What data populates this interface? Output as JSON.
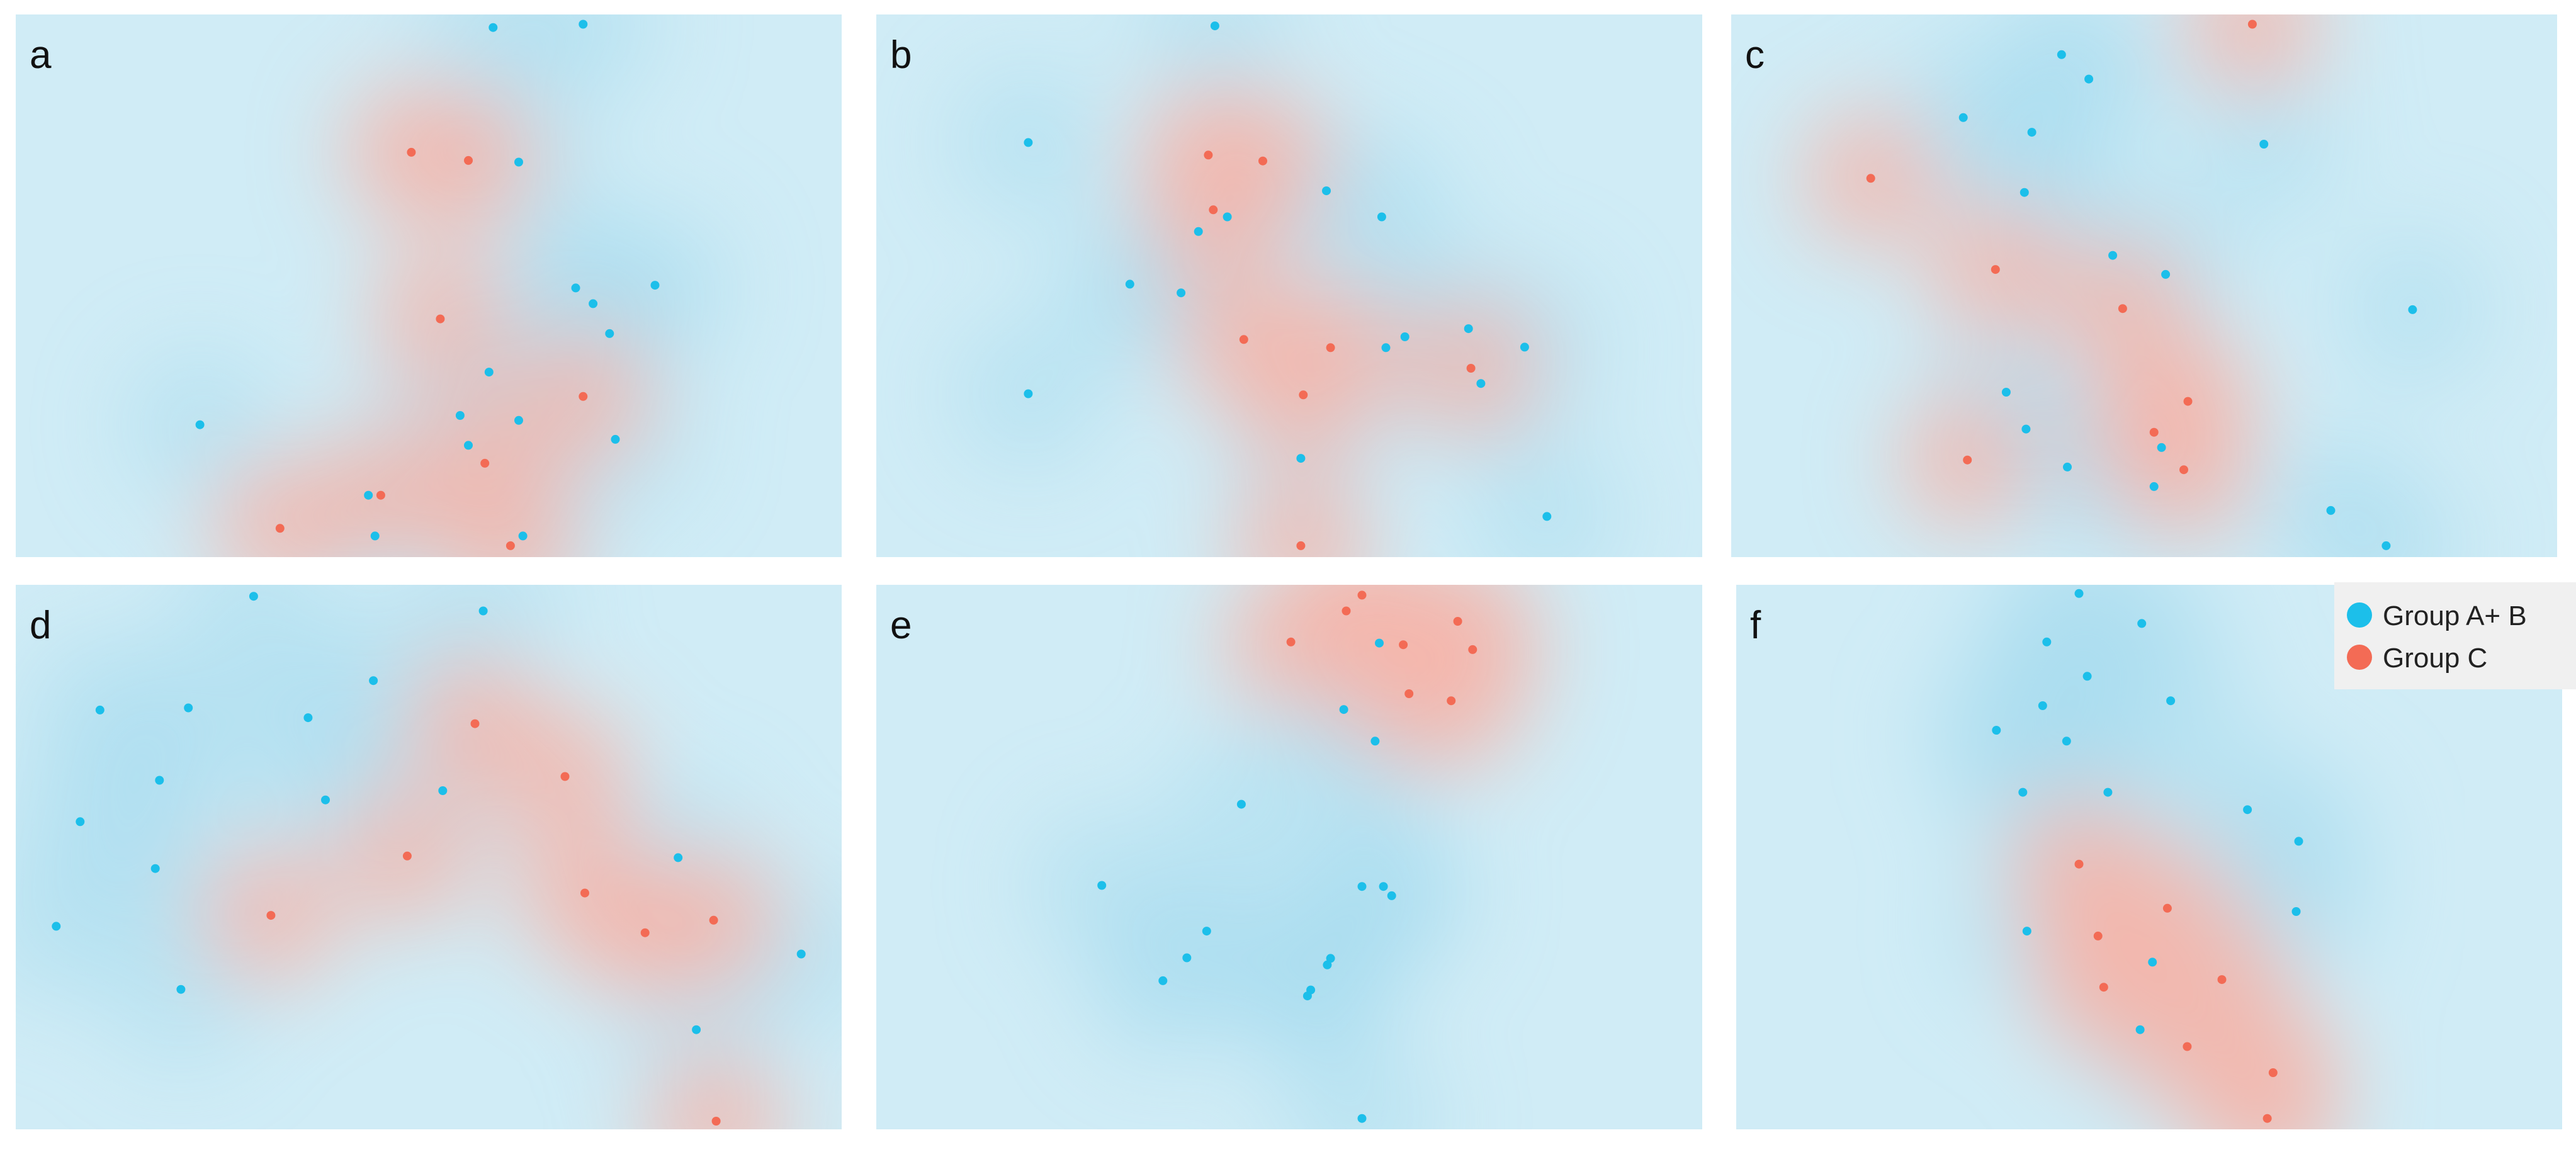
{
  "colors": {
    "group_ab": "#1cbfea",
    "group_c": "#f36b55",
    "field_blue": "#a9dcee",
    "field_red": "#f5b6ab",
    "legend_bg": "#f0f0f0"
  },
  "legend": {
    "placement": "top-right",
    "items": [
      {
        "label": "Group A+ B",
        "color": "#1cbfea"
      },
      {
        "label": "Group C",
        "color": "#f36b55"
      }
    ]
  },
  "chart_data": [
    {
      "type": "scatter",
      "panel": "a",
      "xlim": [
        0,
        100
      ],
      "ylim": [
        0,
        100
      ],
      "series": [
        {
          "name": "Group A+ B",
          "points": [
            [
              57.8,
              97.6
            ],
            [
              68.7,
              98.2
            ],
            [
              60.9,
              72.8
            ],
            [
              67.8,
              49.6
            ],
            [
              69.9,
              46.7
            ],
            [
              77.4,
              50.1
            ],
            [
              71.9,
              41.2
            ],
            [
              57.3,
              34.1
            ],
            [
              53.8,
              26.1
            ],
            [
              60.9,
              25.2
            ],
            [
              72.6,
              21.7
            ],
            [
              54.8,
              20.6
            ],
            [
              22.3,
              24.4
            ],
            [
              42.7,
              11.4
            ],
            [
              43.5,
              3.9
            ],
            [
              61.4,
              3.9
            ]
          ]
        },
        {
          "name": "Group C",
          "points": [
            [
              47.9,
              74.6
            ],
            [
              54.8,
              73.1
            ],
            [
              51.4,
              43.9
            ],
            [
              68.7,
              29.6
            ],
            [
              56.8,
              17.3
            ],
            [
              44.2,
              11.4
            ],
            [
              32.0,
              5.3
            ],
            [
              59.9,
              2.1
            ]
          ]
        }
      ]
    },
    {
      "type": "scatter",
      "panel": "b",
      "xlim": [
        0,
        100
      ],
      "ylim": [
        0,
        100
      ],
      "series": [
        {
          "name": "Group A+ B",
          "points": [
            [
              41.0,
              97.9
            ],
            [
              18.4,
              76.4
            ],
            [
              42.5,
              62.7
            ],
            [
              39.0,
              60.0
            ],
            [
              54.5,
              67.5
            ],
            [
              61.2,
              62.7
            ],
            [
              30.7,
              50.3
            ],
            [
              36.9,
              48.7
            ],
            [
              61.7,
              38.6
            ],
            [
              64.0,
              40.6
            ],
            [
              71.7,
              42.1
            ],
            [
              78.5,
              38.7
            ],
            [
              73.2,
              32.0
            ],
            [
              18.4,
              30.1
            ],
            [
              51.4,
              18.2
            ],
            [
              81.2,
              7.5
            ]
          ]
        },
        {
          "name": "Group C",
          "points": [
            [
              40.2,
              74.1
            ],
            [
              46.8,
              73.0
            ],
            [
              40.8,
              64.0
            ],
            [
              44.5,
              40.1
            ],
            [
              55.0,
              38.6
            ],
            [
              51.7,
              29.9
            ],
            [
              72.0,
              34.8
            ],
            [
              51.4,
              2.1
            ]
          ]
        }
      ]
    },
    {
      "type": "scatter",
      "panel": "c",
      "xlim": [
        0,
        100
      ],
      "ylim": [
        0,
        100
      ],
      "series": [
        {
          "name": "Group A+ B",
          "points": [
            [
              40.0,
              92.6
            ],
            [
              43.3,
              88.1
            ],
            [
              28.1,
              81.0
            ],
            [
              36.4,
              78.3
            ],
            [
              64.5,
              76.1
            ],
            [
              35.5,
              67.2
            ],
            [
              46.2,
              55.6
            ],
            [
              52.6,
              52.1
            ],
            [
              82.5,
              45.6
            ],
            [
              33.3,
              30.4
            ],
            [
              35.7,
              23.6
            ],
            [
              40.7,
              16.6
            ],
            [
              51.2,
              13.0
            ],
            [
              52.1,
              20.2
            ],
            [
              72.6,
              8.6
            ],
            [
              79.3,
              2.1
            ]
          ]
        },
        {
          "name": "Group C",
          "points": [
            [
              63.1,
              98.2
            ],
            [
              16.9,
              69.8
            ],
            [
              32.0,
              53.0
            ],
            [
              47.4,
              45.8
            ],
            [
              55.3,
              28.7
            ],
            [
              51.2,
              23.0
            ],
            [
              54.8,
              16.1
            ],
            [
              28.6,
              17.9
            ]
          ]
        }
      ]
    },
    {
      "type": "scatter",
      "panel": "d",
      "xlim": [
        0,
        100
      ],
      "ylim": [
        0,
        100
      ],
      "series": [
        {
          "name": "Group A+ B",
          "points": [
            [
              28.8,
              97.9
            ],
            [
              56.6,
              95.2
            ],
            [
              10.2,
              77.0
            ],
            [
              20.9,
              77.4
            ],
            [
              35.4,
              75.6
            ],
            [
              43.3,
              82.4
            ],
            [
              17.4,
              64.1
            ],
            [
              37.5,
              60.5
            ],
            [
              51.7,
              62.2
            ],
            [
              7.8,
              56.5
            ],
            [
              16.9,
              47.9
            ],
            [
              80.2,
              49.9
            ],
            [
              4.9,
              37.3
            ],
            [
              20.0,
              25.7
            ],
            [
              95.1,
              32.2
            ],
            [
              82.4,
              18.3
            ]
          ]
        },
        {
          "name": "Group C",
          "points": [
            [
              55.6,
              74.5
            ],
            [
              66.5,
              64.8
            ],
            [
              47.4,
              50.2
            ],
            [
              68.9,
              43.4
            ],
            [
              30.9,
              39.3
            ],
            [
              76.2,
              36.1
            ],
            [
              84.5,
              38.4
            ],
            [
              84.8,
              1.5
            ]
          ]
        }
      ]
    },
    {
      "type": "scatter",
      "panel": "e",
      "xlim": [
        0,
        100
      ],
      "ylim": [
        0,
        100
      ],
      "series": [
        {
          "name": "Group A+ B",
          "points": [
            [
              60.9,
              89.3
            ],
            [
              56.6,
              77.1
            ],
            [
              60.4,
              71.3
            ],
            [
              44.2,
              59.7
            ],
            [
              27.3,
              44.8
            ],
            [
              58.8,
              44.6
            ],
            [
              61.4,
              44.6
            ],
            [
              62.4,
              42.9
            ],
            [
              40.0,
              36.4
            ],
            [
              37.6,
              31.5
            ],
            [
              34.7,
              27.3
            ],
            [
              55.0,
              31.4
            ],
            [
              54.6,
              30.2
            ],
            [
              52.6,
              25.6
            ],
            [
              52.2,
              24.5
            ],
            [
              58.8,
              2.0
            ]
          ]
        },
        {
          "name": "Group C",
          "points": [
            [
              58.8,
              98.1
            ],
            [
              56.9,
              95.2
            ],
            [
              50.2,
              89.5
            ],
            [
              63.8,
              89.0
            ],
            [
              70.4,
              93.3
            ],
            [
              72.2,
              88.1
            ],
            [
              64.5,
              80.0
            ],
            [
              69.6,
              78.7
            ]
          ]
        }
      ]
    },
    {
      "type": "scatter",
      "panel": "f",
      "xlim": [
        0,
        100
      ],
      "ylim": [
        0,
        100
      ],
      "series": [
        {
          "name": "Group A+ B",
          "points": [
            [
              41.5,
              98.4
            ],
            [
              49.1,
              92.9
            ],
            [
              37.6,
              89.5
            ],
            [
              42.5,
              83.2
            ],
            [
              52.6,
              78.7
            ],
            [
              37.1,
              77.8
            ],
            [
              31.5,
              73.3
            ],
            [
              40.0,
              71.3
            ],
            [
              34.7,
              61.9
            ],
            [
              45.0,
              61.9
            ],
            [
              61.9,
              58.7
            ],
            [
              68.1,
              52.9
            ],
            [
              67.8,
              40.0
            ],
            [
              35.2,
              36.4
            ],
            [
              50.4,
              30.7
            ],
            [
              48.9,
              18.3
            ]
          ]
        },
        {
          "name": "Group C",
          "points": [
            [
              41.5,
              48.7
            ],
            [
              52.2,
              40.6
            ],
            [
              43.8,
              35.5
            ],
            [
              44.5,
              26.1
            ],
            [
              58.8,
              27.5
            ],
            [
              54.6,
              15.2
            ],
            [
              65.0,
              10.4
            ],
            [
              64.3,
              2.0
            ]
          ]
        }
      ]
    }
  ]
}
